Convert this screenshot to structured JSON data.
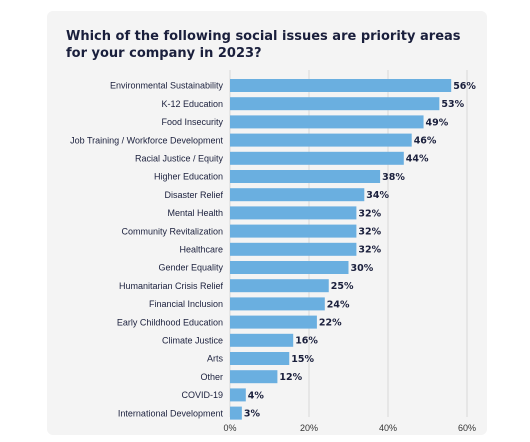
{
  "chart_data": {
    "type": "bar",
    "orientation": "horizontal",
    "title": "Which of the following social issues are priority areas for your company in 2023?",
    "categories": [
      "Environmental Sustainability",
      "K-12 Education",
      "Food Insecurity",
      "Job Training / Workforce Development",
      "Racial Justice / Equity",
      "Higher Education",
      "Disaster Relief",
      "Mental Health",
      "Community Revitalization",
      "Healthcare",
      "Gender Equality",
      "Humanitarian Crisis Relief",
      "Financial Inclusion",
      "Early Childhood Education",
      "Climate Justice",
      "Arts",
      "Other",
      "COVID-19",
      "International Development"
    ],
    "values": [
      56,
      53,
      49,
      46,
      44,
      38,
      34,
      32,
      32,
      32,
      30,
      25,
      24,
      22,
      16,
      15,
      12,
      4,
      3
    ],
    "value_labels": [
      "56%",
      "53%",
      "49%",
      "46%",
      "44%",
      "38%",
      "34%",
      "32%",
      "32%",
      "32%",
      "30%",
      "25%",
      "24%",
      "22%",
      "16%",
      "15%",
      "12%",
      "4%",
      "3%"
    ],
    "xlim": [
      0,
      60
    ],
    "xticks": [
      0,
      20,
      40,
      60
    ],
    "xtick_labels": [
      "0%",
      "20%",
      "40%",
      "60%"
    ],
    "grid": "vertical",
    "bar_color": "#6aafe0",
    "grid_color": "#d8d8d8"
  }
}
